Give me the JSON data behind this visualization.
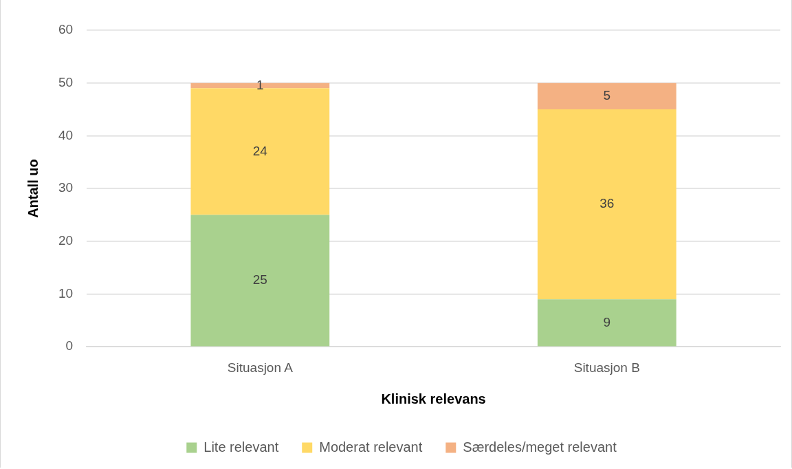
{
  "chart_data": {
    "type": "bar",
    "xlabel": "Klinisk relevans",
    "ylabel": "Antall uo",
    "categories": [
      "Situasjon A",
      "Situasjon B"
    ],
    "series": [
      {
        "name": "Lite relevant",
        "color": "#a9d18e",
        "values": [
          25,
          9
        ]
      },
      {
        "name": "Moderat relevant",
        "color": "#ffd966",
        "values": [
          24,
          36
        ]
      },
      {
        "name": "Særdeles/meget relevant",
        "color": "#f4b183",
        "values": [
          1,
          5
        ]
      }
    ],
    "stacked": true,
    "ylim": [
      0,
      60
    ],
    "yticks": [
      0,
      10,
      20,
      30,
      40,
      50,
      60
    ],
    "grid": "y",
    "legend": "bottom",
    "data_labels": true
  }
}
